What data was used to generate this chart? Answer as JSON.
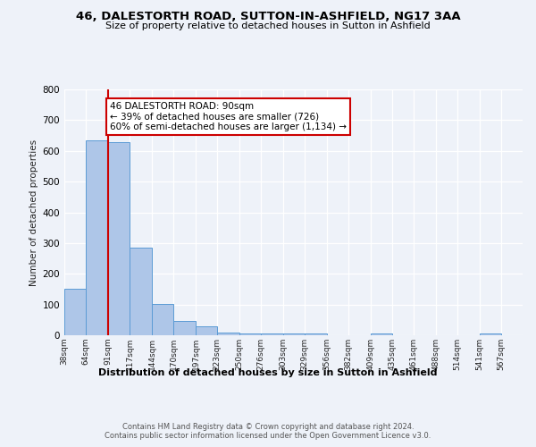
{
  "title": "46, DALESTORTH ROAD, SUTTON-IN-ASHFIELD, NG17 3AA",
  "subtitle": "Size of property relative to detached houses in Sutton in Ashfield",
  "xlabel": "Distribution of detached houses by size in Sutton in Ashfield",
  "ylabel": "Number of detached properties",
  "bin_labels": [
    "38sqm",
    "64sqm",
    "91sqm",
    "117sqm",
    "144sqm",
    "170sqm",
    "197sqm",
    "223sqm",
    "250sqm",
    "276sqm",
    "303sqm",
    "329sqm",
    "356sqm",
    "382sqm",
    "409sqm",
    "435sqm",
    "461sqm",
    "488sqm",
    "514sqm",
    "541sqm",
    "567sqm"
  ],
  "bin_edges": [
    38,
    64,
    91,
    117,
    144,
    170,
    197,
    223,
    250,
    276,
    303,
    329,
    356,
    382,
    409,
    435,
    461,
    488,
    514,
    541,
    567
  ],
  "bar_heights": [
    150,
    633,
    628,
    286,
    103,
    46,
    30,
    10,
    5,
    5,
    5,
    5,
    0,
    0,
    5,
    0,
    0,
    0,
    0,
    5,
    0
  ],
  "bar_color": "#aec6e8",
  "bar_edge_color": "#5b9bd5",
  "property_line_x": 91,
  "property_line_color": "#cc0000",
  "annotation_text": "46 DALESTORTH ROAD: 90sqm\n← 39% of detached houses are smaller (726)\n60% of semi-detached houses are larger (1,134) →",
  "annotation_box_color": "#ffffff",
  "annotation_box_edge_color": "#cc0000",
  "ylim": [
    0,
    800
  ],
  "yticks": [
    0,
    100,
    200,
    300,
    400,
    500,
    600,
    700,
    800
  ],
  "background_color": "#eef2f9",
  "plot_bg_color": "#eef2f9",
  "footer_line1": "Contains HM Land Registry data © Crown copyright and database right 2024.",
  "footer_line2": "Contains public sector information licensed under the Open Government Licence v3.0."
}
